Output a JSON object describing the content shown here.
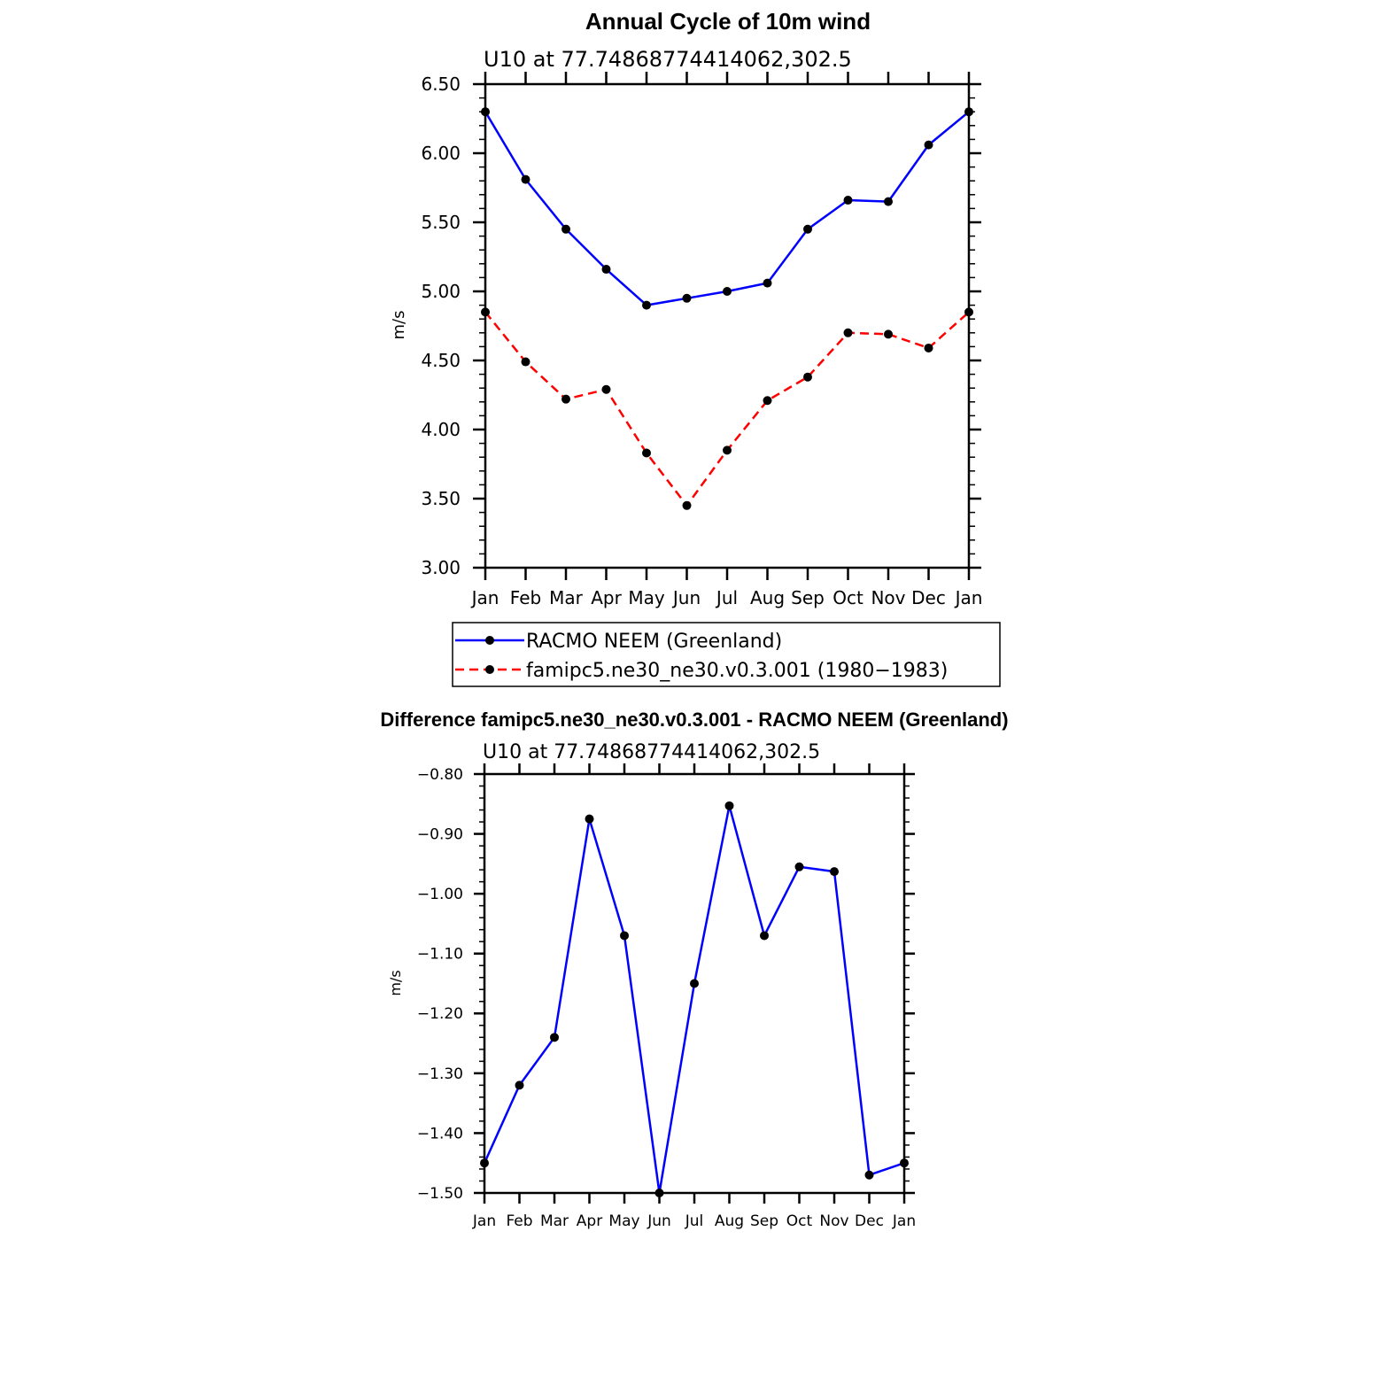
{
  "chart_data": [
    {
      "type": "line",
      "title": "Annual Cycle of 10m wind",
      "subtitle": "U10 at 77.74868774414062,302.5",
      "xlabel": "",
      "ylabel": "m/s",
      "categories": [
        "Jan",
        "Feb",
        "Mar",
        "Apr",
        "May",
        "Jun",
        "Jul",
        "Aug",
        "Sep",
        "Oct",
        "Nov",
        "Dec",
        "Jan"
      ],
      "ylim": [
        3.0,
        6.5
      ],
      "yticks": [
        "3.00",
        "3.50",
        "4.00",
        "4.50",
        "5.00",
        "5.50",
        "6.00",
        "6.50"
      ],
      "series": [
        {
          "name": "RACMO NEEM (Greenland)",
          "color": "#0000ff",
          "dash": "solid",
          "values": [
            6.3,
            5.81,
            5.45,
            5.16,
            4.9,
            4.95,
            5.0,
            5.06,
            5.45,
            5.66,
            5.65,
            6.06,
            6.3
          ]
        },
        {
          "name": "famipc5.ne30_ne30.v0.3.001 (1980−1983)",
          "color": "#ff0000",
          "dash": "dashed",
          "values": [
            4.85,
            4.49,
            4.22,
            4.29,
            3.83,
            3.45,
            3.85,
            4.21,
            4.38,
            4.7,
            4.69,
            4.59,
            4.85
          ]
        }
      ],
      "legend_position": "below"
    },
    {
      "type": "line",
      "title": "Difference famipc5.ne30_ne30.v0.3.001 - RACMO NEEM (Greenland)",
      "subtitle": "U10 at 77.74868774414062,302.5",
      "xlabel": "",
      "ylabel": "m/s",
      "categories": [
        "Jan",
        "Feb",
        "Mar",
        "Apr",
        "May",
        "Jun",
        "Jul",
        "Aug",
        "Sep",
        "Oct",
        "Nov",
        "Dec",
        "Jan"
      ],
      "ylim": [
        -1.5,
        -0.8
      ],
      "yticks": [
        "−1.50",
        "−1.40",
        "−1.30",
        "−1.20",
        "−1.10",
        "−1.00",
        "−0.90",
        "−0.80"
      ],
      "series": [
        {
          "color": "#0000ff",
          "dash": "solid",
          "values": [
            -1.45,
            -1.32,
            -1.24,
            -0.875,
            -1.07,
            -1.5,
            -1.15,
            -0.853,
            -1.07,
            -0.955,
            -0.963,
            -1.47,
            -1.45
          ]
        }
      ]
    }
  ]
}
